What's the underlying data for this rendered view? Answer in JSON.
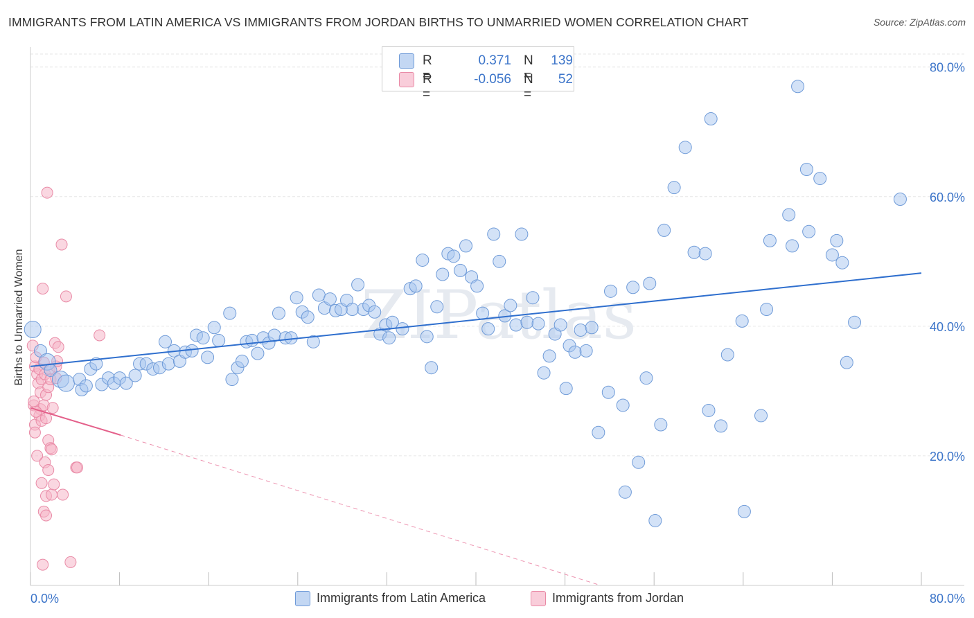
{
  "title": "IMMIGRANTS FROM LATIN AMERICA VS IMMIGRANTS FROM JORDAN BIRTHS TO UNMARRIED WOMEN CORRELATION CHART",
  "source": "Source: ZipAtlas.com",
  "watermark": "ZIPatlas",
  "legend": {
    "rows": [
      {
        "r_label": "R =",
        "r_value": "0.371",
        "n_label": "N =",
        "n_value": "139"
      },
      {
        "r_label": "R =",
        "r_value": "-0.056",
        "n_label": "N =",
        "n_value": "52"
      }
    ]
  },
  "colors": {
    "blue_fill": "#a8c6ef",
    "blue_stroke": "#6f9bd8",
    "blue_line": "#2f6fce",
    "pink_fill": "#f6b6c8",
    "pink_stroke": "#e98aa6",
    "pink_line": "#e4608a",
    "tick_text": "#3b74c9",
    "grid": "#e6e6e6"
  },
  "chart_data": {
    "type": "scatter",
    "title": "IMMIGRANTS FROM LATIN AMERICA VS IMMIGRANTS FROM JORDAN BIRTHS TO UNMARRIED WOMEN CORRELATION CHART",
    "xlabel": "",
    "ylabel": "Births to Unmarried Women",
    "xlim": [
      0,
      80
    ],
    "ylim": [
      0,
      82
    ],
    "x_tick_labels": [
      "0.0%",
      "80.0%"
    ],
    "y_ticks": [
      20,
      40,
      60,
      80
    ],
    "y_tick_labels": [
      "20.0%",
      "40.0%",
      "60.0%",
      "80.0%"
    ],
    "grid": "horizontal dashed",
    "legend_position": "bottom",
    "series": [
      {
        "name": "Immigrants from Latin America",
        "color": "#a8c6ef",
        "trend": {
          "x": [
            0,
            80
          ],
          "y": [
            33.8,
            48.2
          ]
        },
        "points": [
          {
            "x": 0.2,
            "y": 39.5,
            "s": 2
          },
          {
            "x": 0.9,
            "y": 36.2,
            "s": 1
          },
          {
            "x": 1.5,
            "y": 34.5,
            "s": 2
          },
          {
            "x": 1.8,
            "y": 33.2,
            "s": 1
          },
          {
            "x": 2.7,
            "y": 31.8,
            "s": 2
          },
          {
            "x": 3.2,
            "y": 31.2,
            "s": 2
          },
          {
            "x": 4.4,
            "y": 31.8,
            "s": 1
          },
          {
            "x": 4.6,
            "y": 30.2,
            "s": 1
          },
          {
            "x": 5.0,
            "y": 30.8,
            "s": 1
          },
          {
            "x": 5.4,
            "y": 33.4,
            "s": 1
          },
          {
            "x": 5.9,
            "y": 34.2,
            "s": 1
          },
          {
            "x": 6.4,
            "y": 31.0,
            "s": 1
          },
          {
            "x": 7.0,
            "y": 32.0,
            "s": 1
          },
          {
            "x": 7.5,
            "y": 31.2,
            "s": 1
          },
          {
            "x": 8.0,
            "y": 32.0,
            "s": 1
          },
          {
            "x": 8.6,
            "y": 31.2,
            "s": 1
          },
          {
            "x": 9.4,
            "y": 32.4,
            "s": 1
          },
          {
            "x": 9.8,
            "y": 34.2,
            "s": 1
          },
          {
            "x": 10.4,
            "y": 34.2,
            "s": 1
          },
          {
            "x": 11.0,
            "y": 33.4,
            "s": 1
          },
          {
            "x": 11.6,
            "y": 33.6,
            "s": 1
          },
          {
            "x": 12.1,
            "y": 37.6,
            "s": 1
          },
          {
            "x": 12.4,
            "y": 34.2,
            "s": 1
          },
          {
            "x": 12.9,
            "y": 36.2,
            "s": 1
          },
          {
            "x": 13.4,
            "y": 34.6,
            "s": 1
          },
          {
            "x": 13.9,
            "y": 36.0,
            "s": 1
          },
          {
            "x": 14.5,
            "y": 36.2,
            "s": 1
          },
          {
            "x": 14.9,
            "y": 38.6,
            "s": 1
          },
          {
            "x": 15.5,
            "y": 38.2,
            "s": 1
          },
          {
            "x": 15.9,
            "y": 35.2,
            "s": 1
          },
          {
            "x": 16.5,
            "y": 39.8,
            "s": 1
          },
          {
            "x": 16.9,
            "y": 37.8,
            "s": 1
          },
          {
            "x": 17.9,
            "y": 42.0,
            "s": 1
          },
          {
            "x": 18.1,
            "y": 31.8,
            "s": 1
          },
          {
            "x": 18.6,
            "y": 33.6,
            "s": 1
          },
          {
            "x": 19.0,
            "y": 34.6,
            "s": 1
          },
          {
            "x": 19.4,
            "y": 37.6,
            "s": 1
          },
          {
            "x": 19.9,
            "y": 37.8,
            "s": 1
          },
          {
            "x": 20.4,
            "y": 35.8,
            "s": 1
          },
          {
            "x": 20.9,
            "y": 38.2,
            "s": 1
          },
          {
            "x": 21.4,
            "y": 37.4,
            "s": 1
          },
          {
            "x": 21.9,
            "y": 38.6,
            "s": 1
          },
          {
            "x": 22.3,
            "y": 42.0,
            "s": 1
          },
          {
            "x": 22.9,
            "y": 38.2,
            "s": 1
          },
          {
            "x": 23.4,
            "y": 38.2,
            "s": 1
          },
          {
            "x": 23.9,
            "y": 44.4,
            "s": 1
          },
          {
            "x": 24.4,
            "y": 42.2,
            "s": 1
          },
          {
            "x": 24.9,
            "y": 41.4,
            "s": 1
          },
          {
            "x": 25.4,
            "y": 37.6,
            "s": 1
          },
          {
            "x": 25.9,
            "y": 44.8,
            "s": 1
          },
          {
            "x": 26.4,
            "y": 42.8,
            "s": 1
          },
          {
            "x": 26.9,
            "y": 44.2,
            "s": 1
          },
          {
            "x": 27.4,
            "y": 42.4,
            "s": 1
          },
          {
            "x": 27.9,
            "y": 42.6,
            "s": 1
          },
          {
            "x": 28.4,
            "y": 44.0,
            "s": 1
          },
          {
            "x": 28.9,
            "y": 42.6,
            "s": 1
          },
          {
            "x": 29.4,
            "y": 46.4,
            "s": 1
          },
          {
            "x": 29.9,
            "y": 42.6,
            "s": 1
          },
          {
            "x": 30.4,
            "y": 43.2,
            "s": 1
          },
          {
            "x": 30.9,
            "y": 42.2,
            "s": 1
          },
          {
            "x": 31.4,
            "y": 38.8,
            "s": 1
          },
          {
            "x": 31.9,
            "y": 40.2,
            "s": 1
          },
          {
            "x": 32.2,
            "y": 38.2,
            "s": 1
          },
          {
            "x": 32.5,
            "y": 40.6,
            "s": 1
          },
          {
            "x": 33.4,
            "y": 39.6,
            "s": 1
          },
          {
            "x": 34.1,
            "y": 45.8,
            "s": 1
          },
          {
            "x": 34.6,
            "y": 46.2,
            "s": 1
          },
          {
            "x": 35.2,
            "y": 50.2,
            "s": 1
          },
          {
            "x": 35.6,
            "y": 38.4,
            "s": 1
          },
          {
            "x": 36.0,
            "y": 33.6,
            "s": 1
          },
          {
            "x": 36.5,
            "y": 43.0,
            "s": 1
          },
          {
            "x": 37.0,
            "y": 48.0,
            "s": 1
          },
          {
            "x": 37.5,
            "y": 51.2,
            "s": 1
          },
          {
            "x": 38.0,
            "y": 50.8,
            "s": 1
          },
          {
            "x": 38.6,
            "y": 48.6,
            "s": 1
          },
          {
            "x": 39.1,
            "y": 52.4,
            "s": 1
          },
          {
            "x": 39.6,
            "y": 47.6,
            "s": 1
          },
          {
            "x": 40.1,
            "y": 46.2,
            "s": 1
          },
          {
            "x": 40.6,
            "y": 42.0,
            "s": 1
          },
          {
            "x": 41.1,
            "y": 39.6,
            "s": 1
          },
          {
            "x": 41.6,
            "y": 54.2,
            "s": 1
          },
          {
            "x": 42.1,
            "y": 50.0,
            "s": 1
          },
          {
            "x": 42.6,
            "y": 41.6,
            "s": 1
          },
          {
            "x": 43.1,
            "y": 43.2,
            "s": 1
          },
          {
            "x": 43.6,
            "y": 40.2,
            "s": 1
          },
          {
            "x": 44.1,
            "y": 54.2,
            "s": 1
          },
          {
            "x": 44.6,
            "y": 40.6,
            "s": 1
          },
          {
            "x": 45.1,
            "y": 44.4,
            "s": 1
          },
          {
            "x": 45.6,
            "y": 40.4,
            "s": 1
          },
          {
            "x": 46.1,
            "y": 32.8,
            "s": 1
          },
          {
            "x": 46.6,
            "y": 35.4,
            "s": 1
          },
          {
            "x": 47.1,
            "y": 38.8,
            "s": 1
          },
          {
            "x": 47.6,
            "y": 40.2,
            "s": 1
          },
          {
            "x": 48.1,
            "y": 30.4,
            "s": 1
          },
          {
            "x": 48.4,
            "y": 37.0,
            "s": 1
          },
          {
            "x": 48.9,
            "y": 36.0,
            "s": 1
          },
          {
            "x": 49.4,
            "y": 39.4,
            "s": 1
          },
          {
            "x": 49.9,
            "y": 36.2,
            "s": 1
          },
          {
            "x": 50.4,
            "y": 39.8,
            "s": 1
          },
          {
            "x": 51.0,
            "y": 23.6,
            "s": 1
          },
          {
            "x": 51.9,
            "y": 29.8,
            "s": 1
          },
          {
            "x": 52.1,
            "y": 45.4,
            "s": 1
          },
          {
            "x": 53.2,
            "y": 27.8,
            "s": 1
          },
          {
            "x": 53.4,
            "y": 14.4,
            "s": 1
          },
          {
            "x": 54.1,
            "y": 46.0,
            "s": 1
          },
          {
            "x": 54.6,
            "y": 19.0,
            "s": 1
          },
          {
            "x": 55.3,
            "y": 32.0,
            "s": 1
          },
          {
            "x": 55.6,
            "y": 46.6,
            "s": 1
          },
          {
            "x": 56.1,
            "y": 10.0,
            "s": 1
          },
          {
            "x": 56.6,
            "y": 24.8,
            "s": 1
          },
          {
            "x": 56.9,
            "y": 54.8,
            "s": 1
          },
          {
            "x": 57.8,
            "y": 61.4,
            "s": 1
          },
          {
            "x": 58.8,
            "y": 67.6,
            "s": 1
          },
          {
            "x": 59.6,
            "y": 51.4,
            "s": 1
          },
          {
            "x": 60.6,
            "y": 51.2,
            "s": 1
          },
          {
            "x": 60.9,
            "y": 27.0,
            "s": 1
          },
          {
            "x": 61.1,
            "y": 72.0,
            "s": 1
          },
          {
            "x": 62.0,
            "y": 24.6,
            "s": 1
          },
          {
            "x": 62.6,
            "y": 35.6,
            "s": 1
          },
          {
            "x": 63.9,
            "y": 40.8,
            "s": 1
          },
          {
            "x": 64.1,
            "y": 11.4,
            "s": 1
          },
          {
            "x": 65.6,
            "y": 26.2,
            "s": 1
          },
          {
            "x": 66.1,
            "y": 42.6,
            "s": 1
          },
          {
            "x": 66.4,
            "y": 53.2,
            "s": 1
          },
          {
            "x": 68.1,
            "y": 57.2,
            "s": 1
          },
          {
            "x": 68.4,
            "y": 52.4,
            "s": 1
          },
          {
            "x": 68.9,
            "y": 77.0,
            "s": 1
          },
          {
            "x": 69.9,
            "y": 54.6,
            "s": 1
          },
          {
            "x": 69.7,
            "y": 64.2,
            "s": 1
          },
          {
            "x": 70.9,
            "y": 62.8,
            "s": 1
          },
          {
            "x": 72.0,
            "y": 51.0,
            "s": 1
          },
          {
            "x": 72.4,
            "y": 53.2,
            "s": 1
          },
          {
            "x": 72.9,
            "y": 49.8,
            "s": 1
          },
          {
            "x": 73.3,
            "y": 34.4,
            "s": 1
          },
          {
            "x": 74.0,
            "y": 40.6,
            "s": 1
          },
          {
            "x": 78.1,
            "y": 59.6,
            "s": 1
          }
        ]
      },
      {
        "name": "Immigrants from Jordan",
        "color": "#f6b6c8",
        "trend": {
          "x": [
            0,
            8.1
          ],
          "y": [
            27.4,
            23.2
          ]
        },
        "trend_dashed": {
          "x": [
            8.1,
            51.2
          ],
          "y": [
            23.2,
            0
          ]
        },
        "points": [
          {
            "x": 0.2,
            "y": 37.0
          },
          {
            "x": 0.3,
            "y": 27.8
          },
          {
            "x": 0.4,
            "y": 33.8
          },
          {
            "x": 0.5,
            "y": 35.2
          },
          {
            "x": 0.6,
            "y": 32.6
          },
          {
            "x": 0.7,
            "y": 31.2
          },
          {
            "x": 0.8,
            "y": 33.4
          },
          {
            "x": 0.9,
            "y": 29.8
          },
          {
            "x": 1.0,
            "y": 31.8
          },
          {
            "x": 0.9,
            "y": 27.2
          },
          {
            "x": 0.4,
            "y": 24.8
          },
          {
            "x": 0.4,
            "y": 23.6
          },
          {
            "x": 0.6,
            "y": 20.0
          },
          {
            "x": 0.8,
            "y": 26.2
          },
          {
            "x": 1.0,
            "y": 25.4
          },
          {
            "x": 1.2,
            "y": 27.8
          },
          {
            "x": 1.3,
            "y": 32.6
          },
          {
            "x": 1.4,
            "y": 29.4
          },
          {
            "x": 1.6,
            "y": 30.6
          },
          {
            "x": 1.7,
            "y": 33.4
          },
          {
            "x": 1.8,
            "y": 31.8
          },
          {
            "x": 1.1,
            "y": 45.8
          },
          {
            "x": 1.5,
            "y": 60.6
          },
          {
            "x": 1.2,
            "y": 34.4
          },
          {
            "x": 1.4,
            "y": 25.8
          },
          {
            "x": 1.6,
            "y": 22.4
          },
          {
            "x": 1.8,
            "y": 21.2
          },
          {
            "x": 1.3,
            "y": 19.0
          },
          {
            "x": 1.6,
            "y": 17.8
          },
          {
            "x": 1.0,
            "y": 15.8
          },
          {
            "x": 1.4,
            "y": 13.8
          },
          {
            "x": 1.2,
            "y": 11.4
          },
          {
            "x": 1.4,
            "y": 10.8
          },
          {
            "x": 1.1,
            "y": 3.2
          },
          {
            "x": 1.9,
            "y": 14.0
          },
          {
            "x": 2.0,
            "y": 27.4
          },
          {
            "x": 2.1,
            "y": 15.6
          },
          {
            "x": 2.2,
            "y": 37.4
          },
          {
            "x": 2.3,
            "y": 33.8
          },
          {
            "x": 2.4,
            "y": 34.6
          },
          {
            "x": 2.3,
            "y": 32.0
          },
          {
            "x": 2.5,
            "y": 36.8
          },
          {
            "x": 2.8,
            "y": 52.6
          },
          {
            "x": 2.9,
            "y": 14.0
          },
          {
            "x": 3.2,
            "y": 44.6
          },
          {
            "x": 3.6,
            "y": 3.6
          },
          {
            "x": 4.1,
            "y": 18.2
          },
          {
            "x": 4.2,
            "y": 18.2
          },
          {
            "x": 6.2,
            "y": 38.6
          },
          {
            "x": 0.3,
            "y": 28.4
          },
          {
            "x": 0.5,
            "y": 26.8
          },
          {
            "x": 1.9,
            "y": 21.0
          }
        ]
      }
    ]
  },
  "bottom_legend": [
    "Immigrants from Latin America",
    "Immigrants from Jordan"
  ]
}
